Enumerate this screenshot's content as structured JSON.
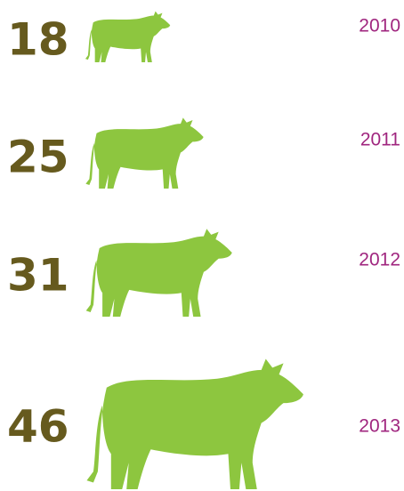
{
  "chart_data": {
    "type": "pictograph",
    "categories": [
      "2010",
      "2011",
      "2012",
      "2013"
    ],
    "values": [
      18,
      25,
      31,
      46
    ],
    "color": "#8dc63f",
    "value_color": "#665a1e",
    "category_color": "#a0267f"
  }
}
